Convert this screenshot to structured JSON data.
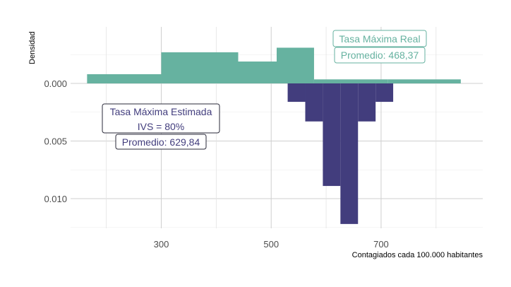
{
  "chart_data": {
    "type": "histogram-mirrored",
    "xlabel": "Contagiados cada 100.000 habitantes",
    "ylabel": "Densidad",
    "x_ticks": [
      300,
      500,
      700
    ],
    "x_minor_ticks": [
      200,
      400,
      600,
      800
    ],
    "xlim": [
      135,
      885
    ],
    "y_ticks": [
      0.0,
      0.005,
      0.01
    ],
    "y_tick_labels": [
      "0.000",
      "0.005",
      "0.010"
    ],
    "ylim": [
      -0.0045,
      0.0125
    ],
    "grid": true,
    "series": [
      {
        "name": "Tasa Máxima Real",
        "color": "#66b2a0",
        "direction": "up",
        "bins": [
          {
            "x0": 165,
            "x1": 300,
            "density": 0.0008
          },
          {
            "x0": 300,
            "x1": 440,
            "density": 0.0027
          },
          {
            "x0": 440,
            "x1": 510,
            "density": 0.0019
          },
          {
            "x0": 510,
            "x1": 578,
            "density": 0.0031
          },
          {
            "x0": 578,
            "x1": 712,
            "density": 0.00035
          },
          {
            "x0": 712,
            "x1": 845,
            "density": 0.00035
          }
        ]
      },
      {
        "name": "Tasa Máxima Estimada",
        "color": "#423d7d",
        "direction": "down",
        "bins": [
          {
            "x0": 530,
            "x1": 562,
            "density": 0.0016
          },
          {
            "x0": 562,
            "x1": 594,
            "density": 0.0033
          },
          {
            "x0": 594,
            "x1": 626,
            "density": 0.0089
          },
          {
            "x0": 626,
            "x1": 658,
            "density": 0.0122
          },
          {
            "x0": 658,
            "x1": 690,
            "density": 0.0033
          },
          {
            "x0": 690,
            "x1": 722,
            "density": 0.0016
          }
        ]
      }
    ],
    "annotations": {
      "real_title": "Tasa Máxima Real",
      "real_mean": "Promedio: 468,37",
      "est_title_line1": "Tasa Máxima Estimada",
      "est_title_line2": "IVS = 80%",
      "est_mean": "Promedio: 629,84",
      "real_color": "#66b2a0",
      "est_color": "#423d7d"
    }
  }
}
